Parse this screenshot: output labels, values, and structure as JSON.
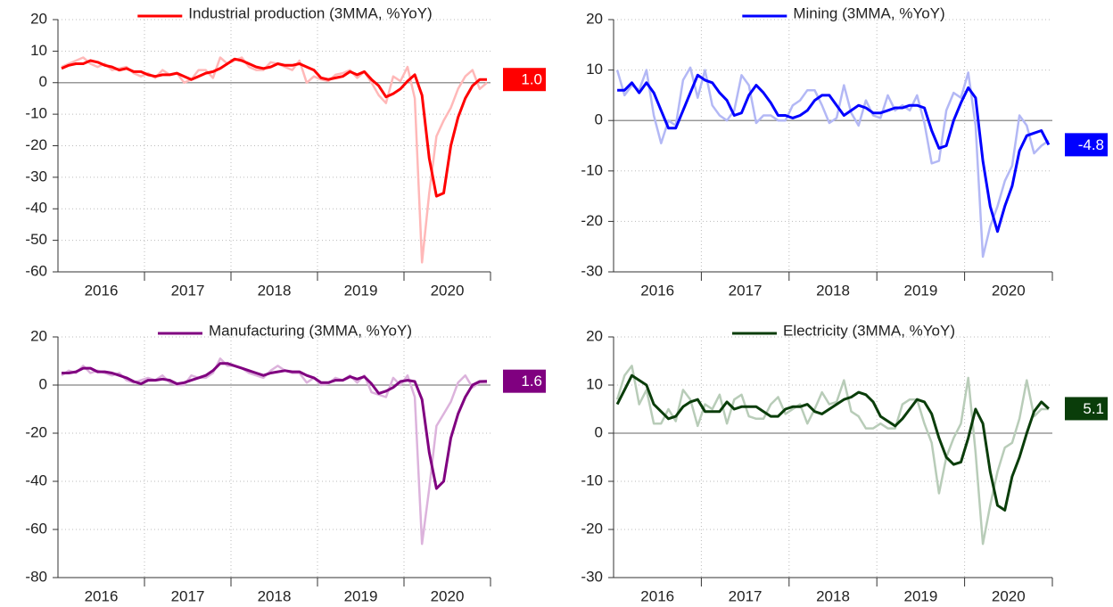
{
  "chart_data": [
    {
      "type": "line",
      "categories": [
        null,
        null,
        null,
        null,
        null,
        "2016",
        null,
        null,
        null,
        null,
        null,
        null,
        null,
        null,
        null,
        null,
        null,
        "2017",
        null,
        null,
        null,
        null,
        null,
        null,
        null,
        null,
        null,
        null,
        null,
        "2018",
        null,
        null,
        null,
        null,
        null,
        null,
        null,
        null,
        null,
        null,
        null,
        "2019",
        null,
        null,
        null,
        null,
        null,
        null,
        null,
        null,
        null,
        null,
        null,
        "2020",
        null,
        null,
        null,
        null,
        null,
        null
      ],
      "ylim": [
        -60,
        20
      ],
      "yticks": [
        -60,
        -50,
        -40,
        -30,
        -20,
        -10,
        0,
        10,
        20
      ],
      "grid": true,
      "series": [
        {
          "color": "#ffb8b8",
          "values": [
            5,
            6,
            7,
            8,
            6,
            5,
            6,
            4,
            4.5,
            5,
            3,
            2,
            3,
            1.5,
            4,
            2.5,
            3,
            0,
            1,
            4,
            4,
            1.5,
            8,
            6,
            7,
            8,
            5,
            4,
            4,
            6.5,
            6,
            5,
            4,
            7,
            0,
            2,
            1,
            0.5,
            2.5,
            3,
            4,
            1.5,
            3.5,
            0,
            -4,
            -6.5,
            2,
            0.5,
            5,
            -5,
            -57,
            -35,
            -17,
            -12,
            -8,
            -2,
            2,
            4,
            -2,
            0
          ]
        },
        {
          "name": "Industrial production (3MMA, %YoY)",
          "color": "#ff0000",
          "values": [
            4.5,
            5.5,
            6,
            6,
            7,
            6.5,
            5.5,
            5,
            4,
            4.5,
            3.5,
            3.5,
            2.5,
            2,
            2.5,
            2.5,
            3,
            2,
            1,
            2,
            3,
            3.5,
            4.5,
            6,
            7.5,
            7,
            6,
            5,
            4.5,
            5,
            6,
            5.5,
            5.5,
            6,
            5,
            4,
            1.5,
            1,
            1.5,
            2,
            3.5,
            2.5,
            3.5,
            1,
            -1,
            -4.5,
            -3.5,
            -2,
            0.5,
            2.5,
            -4,
            -24,
            -36,
            -35,
            -20,
            -11,
            -5,
            -1,
            1,
            1.0
          ],
          "value_labels": [
            null,
            null,
            null,
            null,
            null,
            null,
            null,
            null,
            null,
            null,
            null,
            null,
            null,
            null,
            null,
            null,
            null,
            null,
            null,
            null,
            null,
            null,
            null,
            null,
            null,
            null,
            null,
            null,
            null,
            null,
            null,
            null,
            null,
            null,
            null,
            null,
            null,
            null,
            null,
            null,
            null,
            null,
            null,
            null,
            null,
            null,
            null,
            null,
            null,
            null,
            null,
            null,
            null,
            null,
            null,
            null,
            null,
            null,
            null,
            "1.0"
          ]
        }
      ]
    },
    {
      "type": "line",
      "categories": [
        null,
        null,
        null,
        null,
        null,
        "2016",
        null,
        null,
        null,
        null,
        null,
        null,
        null,
        null,
        null,
        null,
        null,
        "2017",
        null,
        null,
        null,
        null,
        null,
        null,
        null,
        null,
        null,
        null,
        null,
        "2018",
        null,
        null,
        null,
        null,
        null,
        null,
        null,
        null,
        null,
        null,
        null,
        "2019",
        null,
        null,
        null,
        null,
        null,
        null,
        null,
        null,
        null,
        null,
        null,
        "2020",
        null,
        null,
        null,
        null,
        null,
        null
      ],
      "ylim": [
        -30,
        20
      ],
      "yticks": [
        -30,
        -20,
        -10,
        0,
        10,
        20
      ],
      "grid": true,
      "series": [
        {
          "color": "#b3b8f5",
          "values": [
            10,
            5,
            7,
            6,
            10,
            1,
            -4.5,
            0,
            -1,
            8,
            10.5,
            4.5,
            10,
            3,
            1,
            0,
            2,
            9,
            7,
            -0.5,
            1,
            1,
            0,
            0,
            3,
            4,
            6,
            6,
            3,
            -0.5,
            0.5,
            7,
            1.5,
            -1,
            4,
            1,
            0.5,
            5,
            2,
            3,
            2,
            5,
            -0.5,
            -8.5,
            -8,
            2,
            5.5,
            4.5,
            9.5,
            -1,
            -27,
            -21,
            -17,
            -12,
            -9,
            1,
            -1,
            -6.5,
            -5,
            -4
          ]
        },
        {
          "name": "Mining (3MMA, %YoY)",
          "color": "#0000ff",
          "values": [
            6,
            6,
            7.5,
            5.5,
            7.5,
            5.5,
            2,
            -1.5,
            -1.5,
            2,
            5.5,
            9,
            8,
            7.5,
            5.5,
            4,
            1,
            1.5,
            5,
            7,
            5.5,
            3.5,
            1,
            1,
            0.5,
            1,
            2,
            4,
            5,
            5,
            3,
            1,
            2,
            3,
            2.5,
            1.5,
            1.5,
            2,
            2.5,
            2.5,
            3,
            3,
            2.5,
            -2,
            -5.5,
            -5,
            0,
            3.5,
            6.5,
            4.5,
            -8,
            -17,
            -22,
            -17,
            -13,
            -6,
            -3,
            -2.5,
            -2,
            -4.8
          ]
        }
      ]
    },
    {
      "type": "line",
      "categories": [
        null,
        null,
        null,
        null,
        null,
        "2016",
        null,
        null,
        null,
        null,
        null,
        null,
        null,
        null,
        null,
        null,
        null,
        "2017",
        null,
        null,
        null,
        null,
        null,
        null,
        null,
        null,
        null,
        null,
        null,
        "2018",
        null,
        null,
        null,
        null,
        null,
        null,
        null,
        null,
        null,
        null,
        null,
        "2019",
        null,
        null,
        null,
        null,
        null,
        null,
        null,
        null,
        null,
        null,
        null,
        "2020",
        null,
        null,
        null,
        null,
        null,
        null
      ],
      "ylim": [
        -80,
        20
      ],
      "yticks": [
        -80,
        -60,
        -40,
        -20,
        0,
        20
      ],
      "grid": true,
      "series": [
        {
          "color": "#dcb3dc",
          "values": [
            4,
            6,
            5,
            8,
            5,
            6,
            5,
            4,
            5,
            2,
            1,
            2,
            3,
            2,
            4,
            1,
            0,
            0,
            4,
            3,
            3,
            5,
            11,
            8,
            8,
            7,
            5,
            4,
            3,
            6,
            8,
            6,
            5,
            5,
            1,
            3,
            0,
            0.5,
            3,
            2,
            4,
            1,
            4,
            -3,
            -4,
            -5,
            3,
            0,
            4,
            -5,
            -66,
            -43,
            -17,
            -12,
            -7,
            1,
            4,
            -1,
            1,
            1
          ]
        },
        {
          "name": "Manufacturing (3MMA, %YoY)",
          "color": "#800080",
          "values": [
            5,
            5,
            5.5,
            7,
            7,
            5.5,
            5.5,
            5,
            4,
            3,
            1.5,
            0.5,
            2,
            2,
            2.5,
            2,
            0.5,
            1,
            2,
            3,
            4,
            6,
            9,
            9,
            8,
            7,
            6,
            5,
            4,
            5,
            5.5,
            6,
            5.5,
            5.5,
            4,
            3,
            1,
            1,
            2,
            2,
            3.5,
            2.5,
            3.5,
            0.5,
            -3.5,
            -2.5,
            -1,
            1.5,
            2,
            1.5,
            -6,
            -28,
            -43,
            -40,
            -22,
            -12,
            -5,
            0,
            1.5,
            1.6
          ]
        }
      ]
    },
    {
      "type": "line",
      "categories": [
        null,
        null,
        null,
        null,
        null,
        "2016",
        null,
        null,
        null,
        null,
        null,
        null,
        null,
        null,
        null,
        null,
        null,
        "2017",
        null,
        null,
        null,
        null,
        null,
        null,
        null,
        null,
        null,
        null,
        null,
        "2018",
        null,
        null,
        null,
        null,
        null,
        null,
        null,
        null,
        null,
        null,
        null,
        "2019",
        null,
        null,
        null,
        null,
        null,
        null,
        null,
        null,
        null,
        null,
        null,
        "2020",
        null,
        null,
        null,
        null,
        null,
        null
      ],
      "ylim": [
        -30,
        20
      ],
      "yticks": [
        -30,
        -20,
        -10,
        0,
        10,
        20
      ],
      "grid": true,
      "series": [
        {
          "color": "#b8ccb8",
          "values": [
            7,
            12,
            14,
            6,
            9,
            2,
            2,
            5,
            2.5,
            9,
            7,
            1.5,
            6,
            5,
            8,
            2,
            7,
            8,
            3.5,
            3,
            3,
            6,
            7.5,
            4,
            5,
            6,
            2,
            5,
            8.5,
            6,
            6.5,
            11,
            4.5,
            3.5,
            1,
            1,
            2,
            1,
            1,
            6,
            7,
            7,
            2,
            -2,
            -12.5,
            -5,
            -1,
            2,
            11.5,
            -4,
            -23,
            -15,
            -8,
            -3,
            -2,
            3,
            11,
            3.5,
            5,
            5
          ]
        },
        {
          "name": "Electricity (3MMA, %YoY)",
          "color": "#0a3d0a",
          "values": [
            6,
            9,
            12,
            11,
            10,
            6,
            4.5,
            3,
            3.5,
            5.5,
            6.5,
            7,
            4.5,
            4.5,
            4.5,
            6.5,
            5,
            5.5,
            5.5,
            5.5,
            4.5,
            3.5,
            3.5,
            5,
            5.5,
            5.5,
            6,
            4.5,
            4,
            5,
            6,
            7,
            7.5,
            8.5,
            8,
            6.5,
            3.5,
            2.5,
            1.5,
            3,
            5,
            7,
            6.5,
            4,
            -1,
            -5,
            -6.5,
            -6,
            -1,
            5,
            2,
            -8,
            -15,
            -16,
            -9,
            -5,
            0,
            4.5,
            6.5,
            5.1
          ]
        }
      ]
    }
  ]
}
